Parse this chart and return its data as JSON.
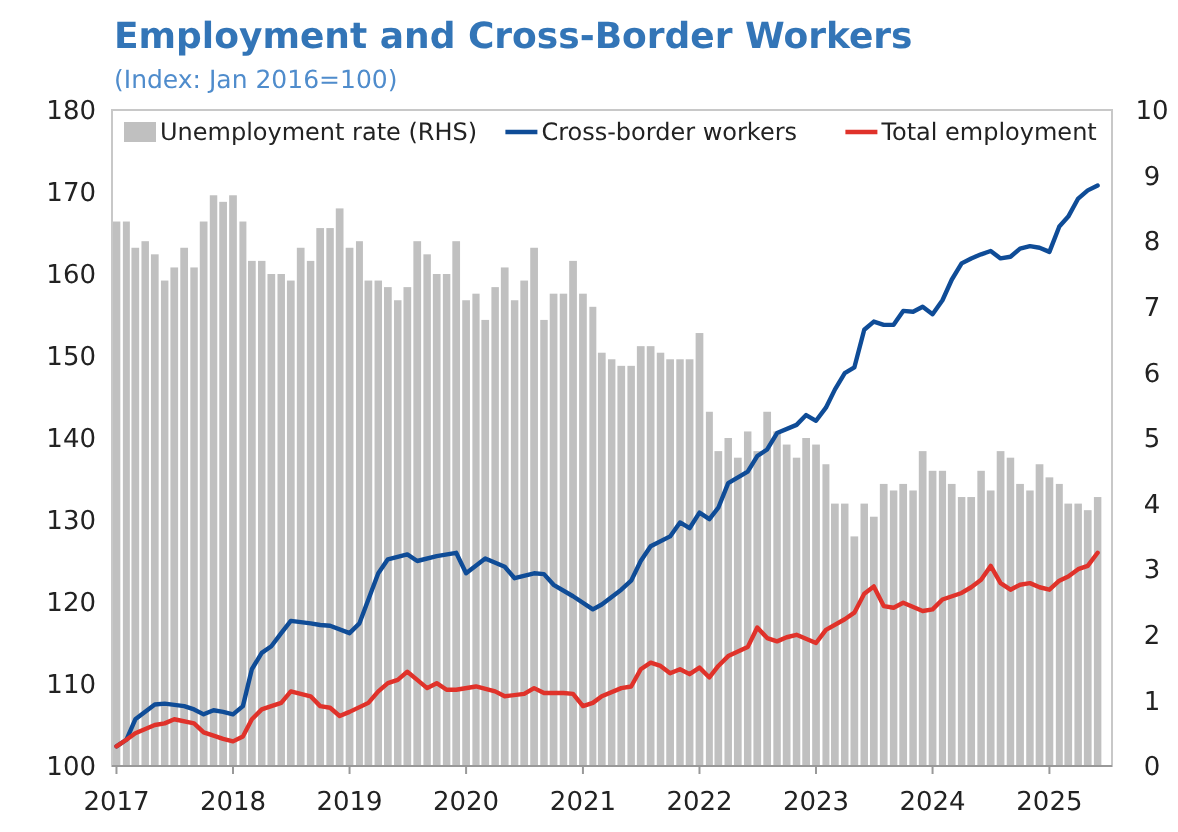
{
  "chart_data": {
    "type": "bar",
    "title": "Employment and Cross-Border Workers",
    "subtitle": "(Index: Jan 2016=100)",
    "x": [
      "2017-01",
      "2017-02",
      "2017-03",
      "2017-04",
      "2017-05",
      "2017-06",
      "2017-07",
      "2017-08",
      "2017-09",
      "2017-10",
      "2017-11",
      "2017-12",
      "2018-01",
      "2018-02",
      "2018-03",
      "2018-04",
      "2018-05",
      "2018-06",
      "2018-07",
      "2018-08",
      "2018-09",
      "2018-10",
      "2018-11",
      "2018-12",
      "2019-01",
      "2019-02",
      "2019-03",
      "2019-04",
      "2019-05",
      "2019-06",
      "2019-07",
      "2019-08",
      "2019-09",
      "2019-10",
      "2019-11",
      "2019-12",
      "2020-01",
      "2020-02",
      "2020-03",
      "2020-04",
      "2020-05",
      "2020-06",
      "2020-07",
      "2020-08",
      "2020-09",
      "2020-10",
      "2020-11",
      "2020-12",
      "2021-01",
      "2021-02",
      "2021-03",
      "2021-04",
      "2021-05",
      "2021-06",
      "2021-07",
      "2021-08",
      "2021-09",
      "2021-10",
      "2021-11",
      "2021-12",
      "2022-01",
      "2022-02",
      "2022-03",
      "2022-04",
      "2022-05",
      "2022-06",
      "2022-07",
      "2022-08",
      "2022-09",
      "2022-10",
      "2022-11",
      "2022-12",
      "2023-01",
      "2023-02",
      "2023-03",
      "2023-04",
      "2023-05",
      "2023-06",
      "2023-07",
      "2023-08",
      "2023-09",
      "2023-10",
      "2023-11",
      "2023-12",
      "2024-01",
      "2024-02",
      "2024-03",
      "2024-04",
      "2024-05",
      "2024-06",
      "2024-07",
      "2024-08",
      "2024-09",
      "2024-10",
      "2024-11",
      "2024-12",
      "2025-01",
      "2025-02",
      "2025-03",
      "2025-04",
      "2025-05",
      "2025-06"
    ],
    "xlim": [
      "2016-12-18",
      "2025-07-16"
    ],
    "xticks": [
      "2017",
      "2018",
      "2019",
      "2020",
      "2021",
      "2022",
      "2023",
      "2024",
      "2025"
    ],
    "ylim": [
      100,
      180
    ],
    "yticks": [
      100,
      110,
      120,
      130,
      140,
      150,
      160,
      170,
      180
    ],
    "y2lim": [
      0,
      10
    ],
    "y2ticks": [
      0,
      1,
      2,
      3,
      4,
      5,
      6,
      7,
      8,
      9,
      10
    ],
    "legend": "top",
    "series": [
      {
        "name": "Unemployment rate (RHS)",
        "axis": "y2",
        "color": "#c0c0c0",
        "values": [
          8.3,
          8.3,
          7.9,
          8.0,
          7.8,
          7.4,
          7.6,
          7.9,
          7.6,
          8.3,
          8.7,
          8.6,
          8.7,
          8.3,
          7.7,
          7.7,
          7.5,
          7.5,
          7.4,
          7.9,
          7.7,
          8.2,
          8.2,
          8.5,
          7.9,
          8.0,
          7.4,
          7.4,
          7.3,
          7.1,
          7.3,
          8.0,
          7.8,
          7.5,
          7.5,
          8.0,
          7.1,
          7.2,
          6.8,
          7.3,
          7.6,
          7.1,
          7.4,
          7.9,
          6.8,
          7.2,
          7.2,
          7.7,
          7.2,
          7.0,
          6.3,
          6.2,
          6.1,
          6.1,
          6.4,
          6.4,
          6.3,
          6.2,
          6.2,
          6.2,
          6.6,
          5.4,
          4.8,
          5.0,
          4.7,
          5.1,
          4.8,
          5.4,
          5.1,
          4.9,
          4.7,
          5.0,
          4.9,
          4.6,
          4.0,
          4.0,
          3.5,
          4.0,
          3.8,
          4.3,
          4.2,
          4.3,
          4.2,
          4.8,
          4.5,
          4.5,
          4.3,
          4.1,
          4.1,
          4.5,
          4.2,
          4.8,
          4.7,
          4.3,
          4.2,
          4.6,
          4.4,
          4.3,
          4.0,
          4.0,
          3.9,
          4.1
        ]
      },
      {
        "name": "Cross-border workers",
        "type": "line",
        "color": "#0f4c97",
        "x": [
          "2017-01",
          "2017-02",
          "2017-03",
          "2017-05",
          "2017-06",
          "2017-08",
          "2017-09",
          "2017-10",
          "2017-11",
          "2017-12",
          "2018-01",
          "2018-02",
          "2018-03",
          "2018-04",
          "2018-05",
          "2018-06",
          "2018-07",
          "2018-09",
          "2018-10",
          "2018-11",
          "2019-01",
          "2019-02",
          "2019-03",
          "2019-04",
          "2019-05",
          "2019-07",
          "2019-08",
          "2019-10",
          "2019-12",
          "2020-01",
          "2020-03",
          "2020-05",
          "2020-06",
          "2020-08",
          "2020-09",
          "2020-10",
          "2020-12",
          "2021-02",
          "2021-03",
          "2021-05",
          "2021-06",
          "2021-07",
          "2021-08",
          "2021-10",
          "2021-11",
          "2021-12",
          "2022-01",
          "2022-02",
          "2022-03",
          "2022-04",
          "2022-06",
          "2022-07",
          "2022-08",
          "2022-09",
          "2022-11",
          "2022-12",
          "2023-01",
          "2023-02",
          "2023-03",
          "2023-04",
          "2023-05",
          "2023-06",
          "2023-07",
          "2023-08",
          "2023-09",
          "2023-10",
          "2023-11",
          "2023-12",
          "2024-01",
          "2024-02",
          "2024-03",
          "2024-04",
          "2024-05",
          "2024-06",
          "2024-07",
          "2024-08",
          "2024-09",
          "2024-10",
          "2024-11",
          "2024-12",
          "2025-01",
          "2025-02",
          "2025-03",
          "2025-04",
          "2025-05",
          "2025-06"
        ],
        "values": [
          102.4,
          103.2,
          105.7,
          107.5,
          107.6,
          107.3,
          106.9,
          106.3,
          106.8,
          106.6,
          106.3,
          107.3,
          111.8,
          113.8,
          114.6,
          116.2,
          117.7,
          117.4,
          117.2,
          117.1,
          116.2,
          117.4,
          120.3,
          123.5,
          125.2,
          125.8,
          125.0,
          125.6,
          126.0,
          123.5,
          125.3,
          124.3,
          122.9,
          123.5,
          123.4,
          122.1,
          120.7,
          119.1,
          119.7,
          121.5,
          122.6,
          125.0,
          126.8,
          128.0,
          129.7,
          129.0,
          130.9,
          130.1,
          131.5,
          134.5,
          135.9,
          137.8,
          138.6,
          140.6,
          141.6,
          142.8,
          142.1,
          143.7,
          145.9,
          147.9,
          148.6,
          153.2,
          154.2,
          153.8,
          153.8,
          155.5,
          155.4,
          156.0,
          155.1,
          156.8,
          159.3,
          161.3,
          161.9,
          162.4,
          162.8,
          161.9,
          162.1,
          163.1,
          163.4,
          163.2,
          162.7,
          165.8,
          167.0,
          169.2,
          170.2,
          170.8
        ]
      },
      {
        "name": "Total employment",
        "type": "line",
        "color": "#e0322a",
        "x": [
          "2017-01",
          "2017-02",
          "2017-03",
          "2017-05",
          "2017-06",
          "2017-07",
          "2017-09",
          "2017-10",
          "2017-11",
          "2017-12",
          "2018-01",
          "2018-02",
          "2018-03",
          "2018-04",
          "2018-05",
          "2018-06",
          "2018-07",
          "2018-09",
          "2018-10",
          "2018-11",
          "2018-12",
          "2019-01",
          "2019-03",
          "2019-04",
          "2019-05",
          "2019-06",
          "2019-07",
          "2019-08",
          "2019-09",
          "2019-10",
          "2019-11",
          "2019-12",
          "2020-02",
          "2020-04",
          "2020-05",
          "2020-07",
          "2020-08",
          "2020-09",
          "2020-11",
          "2020-12",
          "2021-01",
          "2021-02",
          "2021-03",
          "2021-05",
          "2021-06",
          "2021-07",
          "2021-08",
          "2021-09",
          "2021-10",
          "2021-11",
          "2021-12",
          "2022-01",
          "2022-02",
          "2022-03",
          "2022-04",
          "2022-06",
          "2022-07",
          "2022-08",
          "2022-09",
          "2022-10",
          "2022-11",
          "2023-01",
          "2023-02",
          "2023-04",
          "2023-05",
          "2023-06",
          "2023-07",
          "2023-08",
          "2023-09",
          "2023-10",
          "2023-12",
          "2024-01",
          "2024-02",
          "2024-04",
          "2024-05",
          "2024-06",
          "2024-07",
          "2024-08",
          "2024-09",
          "2024-10",
          "2024-11",
          "2024-12",
          "2025-01",
          "2025-02",
          "2025-03",
          "2025-04",
          "2025-05",
          "2025-06"
        ],
        "values": [
          102.4,
          103.2,
          104.0,
          105.0,
          105.2,
          105.7,
          105.2,
          104.1,
          103.7,
          103.3,
          103.0,
          103.6,
          105.7,
          106.9,
          107.3,
          107.7,
          109.1,
          108.5,
          107.3,
          107.1,
          106.1,
          106.6,
          107.7,
          109.1,
          110.1,
          110.5,
          111.5,
          110.5,
          109.5,
          110.1,
          109.3,
          109.3,
          109.7,
          109.1,
          108.5,
          108.8,
          109.5,
          108.9,
          108.9,
          108.8,
          107.3,
          107.7,
          108.5,
          109.5,
          109.7,
          111.8,
          112.6,
          112.2,
          111.3,
          111.8,
          111.2,
          112.0,
          110.8,
          112.2,
          113.4,
          114.5,
          116.9,
          115.6,
          115.2,
          115.7,
          116.0,
          115.0,
          116.6,
          117.9,
          118.7,
          121.0,
          121.9,
          119.5,
          119.3,
          119.9,
          118.9,
          119.1,
          120.3,
          121.1,
          121.8,
          122.7,
          124.4,
          122.3,
          121.5,
          122.1,
          122.3,
          121.8,
          121.5,
          122.6,
          123.1,
          124.0,
          124.4,
          126.0
        ]
      }
    ]
  }
}
